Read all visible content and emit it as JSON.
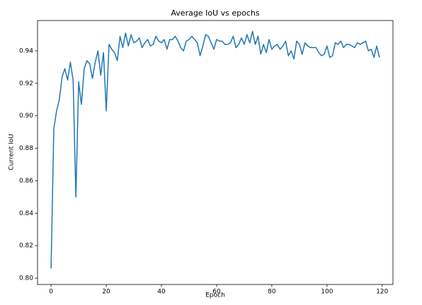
{
  "chart_data": {
    "type": "line",
    "title": "Average IoU vs epochs",
    "xlabel": "Epoch",
    "ylabel": "Current IoU",
    "x": [
      0,
      1,
      2,
      3,
      4,
      5,
      6,
      7,
      8,
      9,
      10,
      11,
      12,
      13,
      14,
      15,
      16,
      17,
      18,
      19,
      20,
      21,
      22,
      23,
      24,
      25,
      26,
      27,
      28,
      29,
      30,
      31,
      32,
      33,
      34,
      35,
      36,
      37,
      38,
      39,
      40,
      41,
      42,
      43,
      44,
      45,
      46,
      47,
      48,
      49,
      50,
      51,
      52,
      53,
      54,
      55,
      56,
      57,
      58,
      59,
      60,
      61,
      62,
      63,
      64,
      65,
      66,
      67,
      68,
      69,
      70,
      71,
      72,
      73,
      74,
      75,
      76,
      77,
      78,
      79,
      80,
      81,
      82,
      83,
      84,
      85,
      86,
      87,
      88,
      89,
      90,
      91,
      92,
      93,
      94,
      95,
      96,
      97,
      98,
      99,
      100,
      101,
      102,
      103,
      104,
      105,
      106,
      107,
      108,
      109,
      110,
      111,
      112,
      113,
      114,
      115,
      116,
      117,
      118,
      119
    ],
    "series": [
      {
        "color": "#1f77b4",
        "values": [
          0.806,
          0.892,
          0.903,
          0.91,
          0.924,
          0.929,
          0.922,
          0.933,
          0.922,
          0.85,
          0.921,
          0.907,
          0.929,
          0.934,
          0.932,
          0.923,
          0.933,
          0.94,
          0.925,
          0.939,
          0.903,
          0.944,
          0.941,
          0.939,
          0.934,
          0.949,
          0.942,
          0.951,
          0.943,
          0.95,
          0.945,
          0.946,
          0.948,
          0.942,
          0.945,
          0.947,
          0.943,
          0.944,
          0.949,
          0.946,
          0.945,
          0.947,
          0.941,
          0.947,
          0.947,
          0.949,
          0.946,
          0.942,
          0.94,
          0.946,
          0.947,
          0.949,
          0.947,
          0.945,
          0.937,
          0.943,
          0.95,
          0.949,
          0.945,
          0.941,
          0.947,
          0.946,
          0.946,
          0.944,
          0.944,
          0.945,
          0.949,
          0.942,
          0.944,
          0.948,
          0.944,
          0.95,
          0.945,
          0.952,
          0.944,
          0.949,
          0.938,
          0.944,
          0.939,
          0.947,
          0.941,
          0.943,
          0.944,
          0.941,
          0.943,
          0.946,
          0.937,
          0.94,
          0.935,
          0.946,
          0.944,
          0.938,
          0.945,
          0.943,
          0.942,
          0.942,
          0.942,
          0.939,
          0.937,
          0.938,
          0.943,
          0.936,
          0.937,
          0.945,
          0.944,
          0.946,
          0.942,
          0.944,
          0.944,
          0.943,
          0.942,
          0.945,
          0.944,
          0.945,
          0.946,
          0.94,
          0.941,
          0.936,
          0.943,
          0.936
        ]
      }
    ],
    "xlim": [
      -4.9,
      123.9
    ],
    "ylim": [
      0.7961,
      0.9587
    ],
    "xticks": [
      0,
      20,
      40,
      60,
      80,
      100,
      120
    ],
    "yticks": [
      {
        "value": 0.8,
        "label": "0.80"
      },
      0.82,
      0.84,
      0.86,
      0.88,
      {
        "value": 0.9,
        "label": "0.90"
      },
      0.92,
      0.94
    ]
  }
}
